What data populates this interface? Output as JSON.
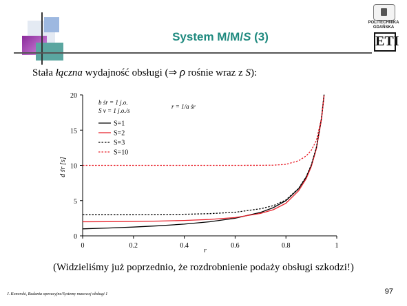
{
  "title_prefix": "System M/M/",
  "title_italic": "S",
  "title_suffix": " (3)",
  "logo": {
    "line1": "POLITECHNIKA",
    "line2": "GDAŃSKA",
    "mark": "ETI"
  },
  "intro": {
    "before": "Stała ",
    "italic_word": "łączna",
    "middle": " wydajność obsługi (⇒ ",
    "rho": "ρ",
    "after_rho": " rośnie wraz z ",
    "s_var": "S",
    "end": "):"
  },
  "caption": "(Widzieliśmy już poprzednio, że rozdrobnienie podaży obsługi szkodzi!)",
  "footer": "J. Konorski, Badania operacyjne/Systemy masowej obsługi 1",
  "page_number": "97",
  "chart_data": {
    "type": "line",
    "xlabel": "r",
    "ylabel": "d śr [s]",
    "xlim": [
      0,
      1
    ],
    "ylim": [
      0,
      20
    ],
    "xticks": [
      "0",
      "0.2",
      "0.4",
      "0.6",
      "0.8",
      "1"
    ],
    "yticks": [
      "0",
      "5",
      "10",
      "15",
      "20"
    ],
    "grid": false,
    "legend_position": "top-left",
    "annotations": {
      "params_line1": "b śr = 1 j.o.",
      "params_line2": "S v = 1 j.o./s",
      "formula": "r = 1/a śr"
    },
    "x": [
      0,
      0.1,
      0.2,
      0.3,
      0.4,
      0.5,
      0.6,
      0.7,
      0.75,
      0.8,
      0.85,
      0.88,
      0.9,
      0.92,
      0.94,
      0.95
    ],
    "series": [
      {
        "name": "S=1",
        "color": "#000000",
        "dash": "solid",
        "values": [
          1.0,
          1.11,
          1.25,
          1.43,
          1.67,
          2.0,
          2.5,
          3.33,
          4.0,
          5.0,
          6.67,
          8.33,
          10.0,
          12.5,
          16.67,
          20.0
        ]
      },
      {
        "name": "S=2",
        "color": "#e8202a",
        "dash": "solid",
        "values": [
          2.0,
          2.01,
          2.04,
          2.1,
          2.19,
          2.33,
          2.6,
          3.18,
          3.71,
          4.62,
          6.39,
          8.13,
          9.85,
          12.38,
          16.57,
          19.91
        ]
      },
      {
        "name": "S=3",
        "color": "#000000",
        "dash": "dotted",
        "values": [
          3.0,
          3.0,
          3.0,
          3.02,
          3.06,
          3.15,
          3.35,
          3.84,
          4.28,
          5.09,
          6.73,
          8.42,
          10.09,
          12.59,
          16.75,
          20.08
        ]
      },
      {
        "name": "S=10",
        "color": "#e8202a",
        "dash": "dotted",
        "values": [
          10.0,
          10.0,
          10.0,
          10.0,
          10.0,
          10.0,
          10.0,
          10.01,
          10.03,
          10.15,
          10.65,
          11.35,
          12.15,
          13.55,
          16.75,
          19.9
        ]
      }
    ]
  }
}
